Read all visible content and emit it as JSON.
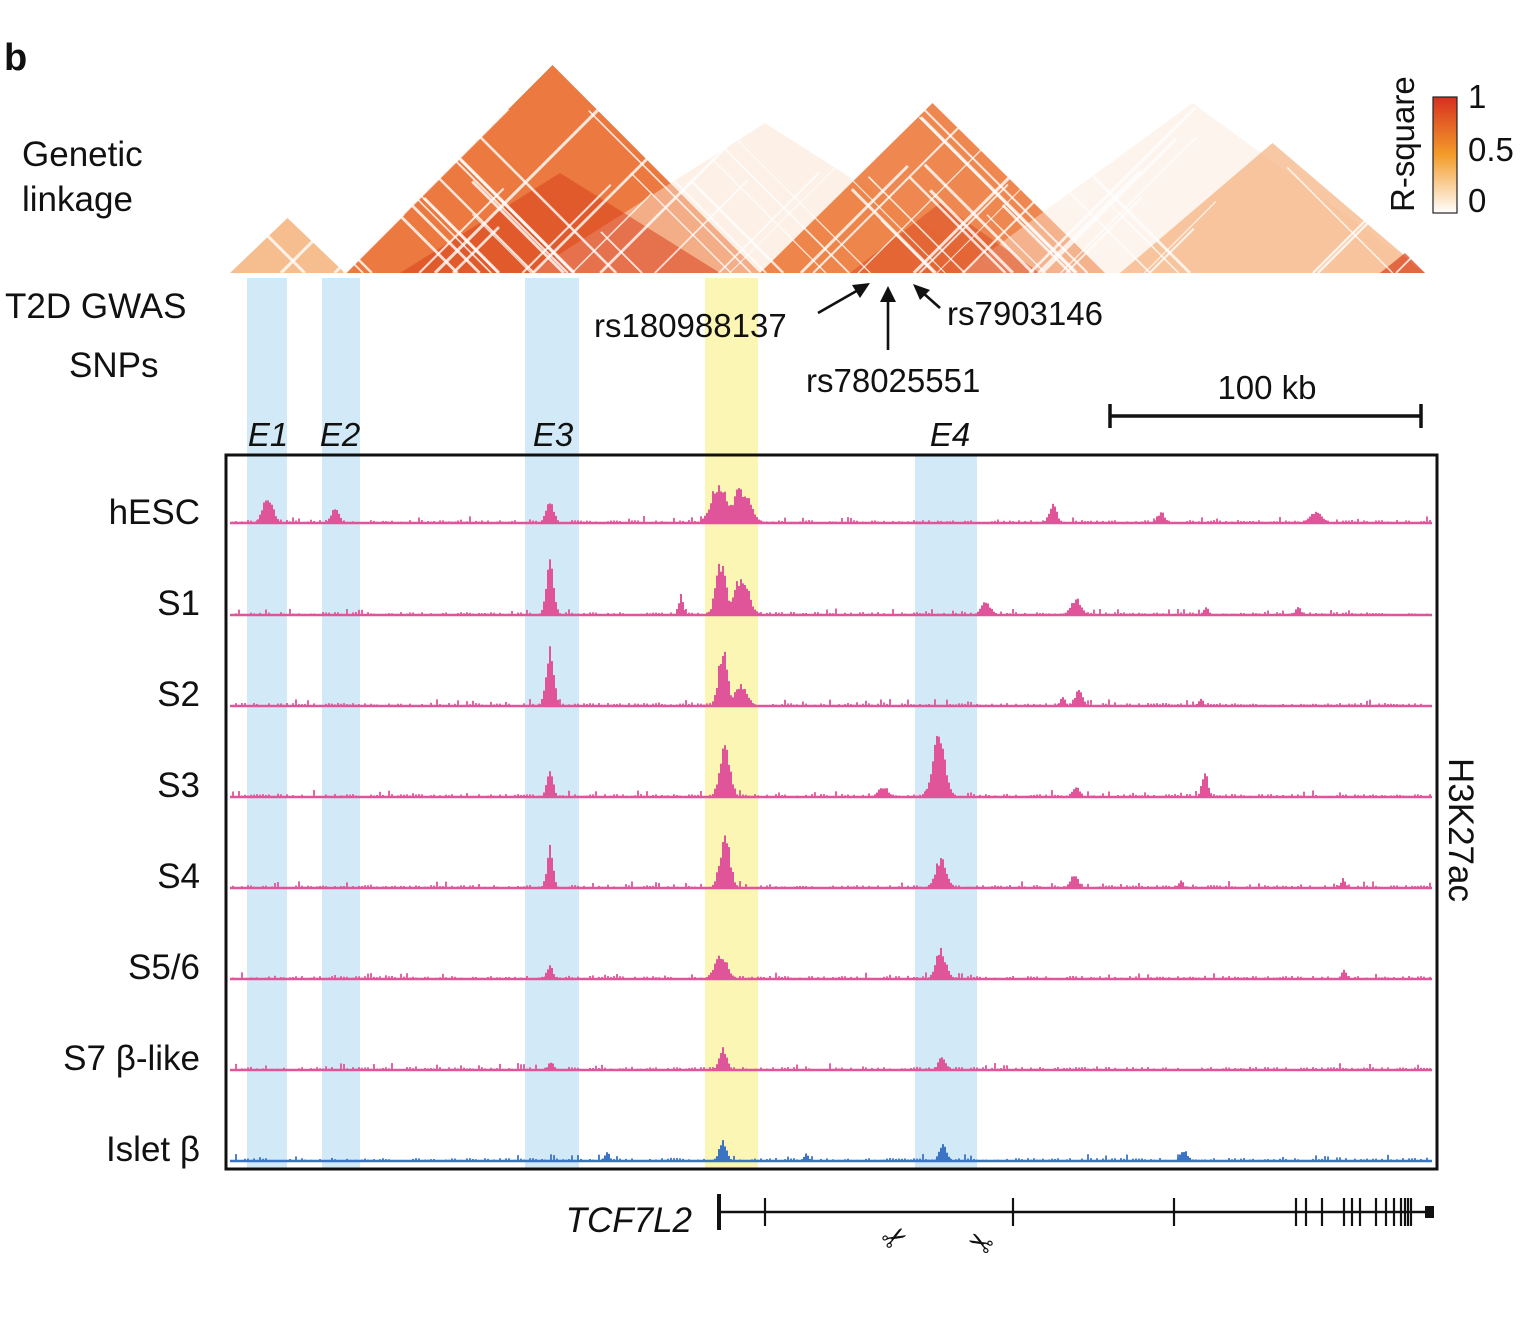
{
  "panel_letter": "b",
  "row_labels": {
    "linkage_line1": "Genetic",
    "linkage_line2": "linkage",
    "gwas_line1": "T2D GWAS",
    "gwas_line2": "SNPs"
  },
  "colorbar": {
    "title": "R-square",
    "ticks": [
      "1",
      "0.5",
      "0"
    ],
    "colors": {
      "high": "#d7301f",
      "mid": "#f39c2b",
      "low": "#ffffff"
    }
  },
  "snps": [
    "rs180988137",
    "rs78025551",
    "rs7903146"
  ],
  "scale_bar_label": "100 kb",
  "enhancers": [
    "E1",
    "E2",
    "E3",
    "E4"
  ],
  "tracks": [
    {
      "label": "hESC"
    },
    {
      "label": "S1"
    },
    {
      "label": "S2"
    },
    {
      "label": "S3"
    },
    {
      "label": "S4"
    },
    {
      "label": "S5/6"
    },
    {
      "label": "S7 β-like"
    },
    {
      "label": "Islet β"
    }
  ],
  "mark_label": "H3K27ac",
  "gene_name": "TCF7L2",
  "colors": {
    "track": "#e0559a",
    "islet_track": "#3b74c4",
    "enhancer_highlight": "#d2eaf8",
    "snp_highlight": "#fbf6b4"
  }
}
